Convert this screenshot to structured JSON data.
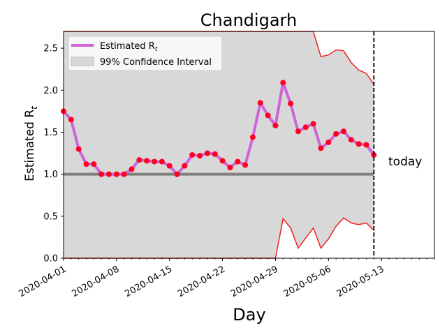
{
  "chart_data": {
    "type": "line",
    "title": "Chandigarh",
    "xlabel": "Day",
    "ylabel_text": "Estimated R",
    "ylabel_sub": "t",
    "xlim": [
      "2020-04-01",
      "2020-05-20"
    ],
    "ylim": [
      0,
      2.7
    ],
    "x_ticks": [
      "2020-04-01",
      "2020-04-08",
      "2020-04-15",
      "2020-04-22",
      "2020-04-29",
      "2020-05-06",
      "2020-05-13"
    ],
    "y_ticks": [
      "0.0",
      "0.5",
      "1.0",
      "1.5",
      "2.0",
      "2.5"
    ],
    "legend": {
      "placement": "top-left",
      "estimate_label": "Estimated R",
      "estimate_sub": "t",
      "ci_label": "99% Confidence Interval"
    },
    "today_label": "today",
    "today_date": "2020-05-12",
    "baseline": 1.0,
    "colors": {
      "estimate_line": "#cc66d6",
      "points": "#ff0022",
      "ci_fill": "#d8d8d8",
      "ci_bounds": "#ee2222",
      "baseline": "#808080"
    },
    "series": [
      {
        "name": "Estimated R",
        "x": [
          "2020-04-01",
          "2020-04-02",
          "2020-04-03",
          "2020-04-04",
          "2020-04-05",
          "2020-04-06",
          "2020-04-07",
          "2020-04-08",
          "2020-04-09",
          "2020-04-10",
          "2020-04-11",
          "2020-04-12",
          "2020-04-13",
          "2020-04-14",
          "2020-04-15",
          "2020-04-16",
          "2020-04-17",
          "2020-04-18",
          "2020-04-19",
          "2020-04-20",
          "2020-04-21",
          "2020-04-22",
          "2020-04-23",
          "2020-04-24",
          "2020-04-25",
          "2020-04-26",
          "2020-04-27",
          "2020-04-28",
          "2020-04-29",
          "2020-04-30",
          "2020-05-01",
          "2020-05-02",
          "2020-05-03",
          "2020-05-04",
          "2020-05-05",
          "2020-05-06",
          "2020-05-07",
          "2020-05-08",
          "2020-05-09",
          "2020-05-10",
          "2020-05-11",
          "2020-05-12"
        ],
        "values": [
          1.75,
          1.65,
          1.3,
          1.12,
          1.12,
          1.0,
          1.0,
          1.0,
          1.0,
          1.06,
          1.17,
          1.16,
          1.15,
          1.15,
          1.1,
          1.0,
          1.1,
          1.23,
          1.22,
          1.25,
          1.24,
          1.16,
          1.08,
          1.15,
          1.11,
          1.44,
          1.85,
          1.7,
          1.58,
          2.09,
          1.84,
          1.51,
          1.56,
          1.6,
          1.31,
          1.38,
          1.48,
          1.51,
          1.41,
          1.36,
          1.35,
          1.23
        ]
      },
      {
        "name": "CI upper",
        "values": [
          2.7,
          2.7,
          2.7,
          2.7,
          2.7,
          2.7,
          2.7,
          2.7,
          2.7,
          2.7,
          2.7,
          2.7,
          2.7,
          2.7,
          2.7,
          2.7,
          2.7,
          2.7,
          2.7,
          2.7,
          2.7,
          2.7,
          2.7,
          2.7,
          2.7,
          2.7,
          2.7,
          2.7,
          2.7,
          2.7,
          2.7,
          2.7,
          2.7,
          2.7,
          2.4,
          2.42,
          2.48,
          2.47,
          2.33,
          2.24,
          2.2,
          2.07
        ]
      },
      {
        "name": "CI lower",
        "values": [
          0,
          0,
          0,
          0,
          0,
          0,
          0,
          0,
          0,
          0,
          0,
          0,
          0,
          0,
          0,
          0,
          0,
          0,
          0,
          0,
          0,
          0,
          0,
          0,
          0,
          0,
          0,
          0,
          0,
          0.47,
          0.36,
          0.12,
          0.24,
          0.36,
          0.12,
          0.23,
          0.38,
          0.48,
          0.42,
          0.4,
          0.42,
          0.33
        ]
      }
    ]
  }
}
